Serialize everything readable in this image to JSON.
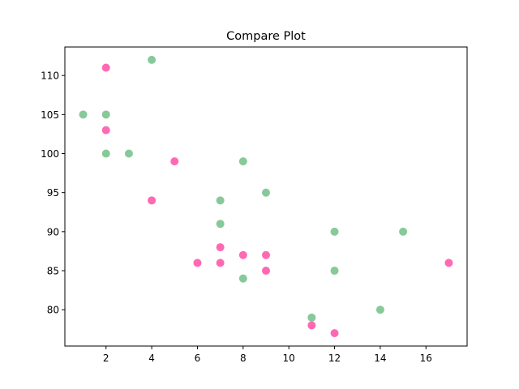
{
  "chart_data": {
    "type": "scatter",
    "title": "Compare Plot",
    "xlabel": "",
    "ylabel": "",
    "xlim": [
      0.2,
      17.8
    ],
    "ylim": [
      75.35,
      113.65
    ],
    "xticks": [
      2,
      4,
      6,
      8,
      10,
      12,
      14,
      16
    ],
    "yticks": [
      80,
      85,
      90,
      95,
      100,
      105,
      110
    ],
    "grid": false,
    "series": [
      {
        "color": "#88c999",
        "x": [
          1,
          2,
          2,
          3,
          4,
          7,
          7,
          8,
          8,
          9,
          11,
          12,
          12,
          14,
          15
        ],
        "y": [
          105,
          105,
          100,
          100,
          112,
          94,
          91,
          99,
          84,
          95,
          79,
          90,
          85,
          80,
          90
        ]
      },
      {
        "color": "#ff69b4",
        "x": [
          2,
          2,
          4,
          5,
          6,
          7,
          7,
          8,
          9,
          9,
          11,
          12,
          17
        ],
        "y": [
          111,
          103,
          94,
          99,
          86,
          88,
          86,
          87,
          87,
          85,
          78,
          77,
          86
        ]
      }
    ]
  }
}
